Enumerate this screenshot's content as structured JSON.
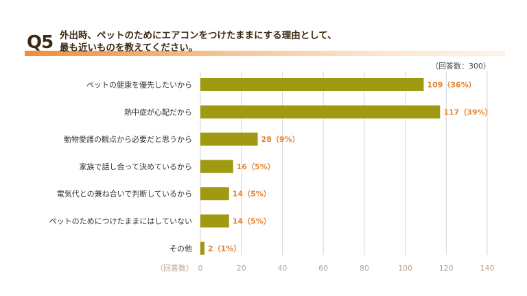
{
  "header": {
    "question_id": "Q5",
    "title_line1": "外出時、ペットのためにエアコンをつけたままにする理由として、",
    "title_line2": "最も近いものを教えてください。",
    "note": "（回答数：300）"
  },
  "colors": {
    "bar": "#a09a12",
    "value_label": "#e5832e",
    "accent_band": "#ee8d3b",
    "gridline": "#d4d4d4",
    "tick_label": "#b5a492"
  },
  "chart_data": {
    "type": "bar",
    "orientation": "horizontal",
    "categories": [
      "ペットの健康を優先したいから",
      "熱中症が心配だから",
      "動物愛護の観点から必要だと思うから",
      "家族で話し合って決めているから",
      "電気代との兼ね合いで判断しているから",
      "ペットのためにつけたままにはしていない",
      "その他"
    ],
    "values": [
      109,
      117,
      28,
      16,
      14,
      14,
      2
    ],
    "value_labels": [
      "109（36%）",
      "117（39%）",
      "28（9%）",
      "16（5%）",
      "14（5%）",
      "14（5%）",
      "2（1%）"
    ],
    "xlabel": "（回答数）",
    "xlim": [
      0,
      140
    ],
    "xticks": [
      "0",
      "20",
      "40",
      "60",
      "80",
      "100",
      "120",
      "140"
    ],
    "grid": true
  }
}
